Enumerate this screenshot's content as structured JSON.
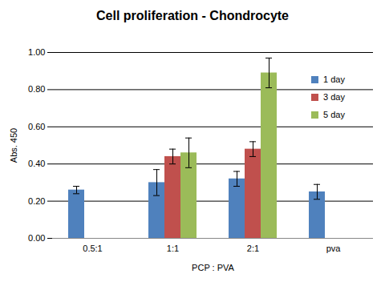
{
  "chart_data": {
    "type": "bar",
    "title": "Cell proliferation - Chondrocyte",
    "x_label": "PCP : PVA",
    "y_label": "Abs. 450",
    "categories": [
      "0.5:1",
      "1:1",
      "2:1",
      "pva"
    ],
    "series": [
      {
        "name": "1 day",
        "color": "#4f81bd",
        "values": [
          0.26,
          0.3,
          0.32,
          0.25
        ],
        "errors": [
          0.02,
          0.07,
          0.04,
          0.04
        ]
      },
      {
        "name": "3 day",
        "color": "#c0504d",
        "values": [
          null,
          0.44,
          0.48,
          null
        ],
        "errors": [
          null,
          0.04,
          0.04,
          null
        ]
      },
      {
        "name": "5 day",
        "color": "#9bbb59",
        "values": [
          null,
          0.46,
          0.89,
          null
        ],
        "errors": [
          null,
          0.08,
          0.08,
          null
        ]
      }
    ],
    "ylim": [
      0,
      1
    ],
    "yticks": [
      {
        "value": 0,
        "label": "0.00"
      },
      {
        "value": 0.2,
        "label": "0.20"
      },
      {
        "value": 0.4,
        "label": "0.40"
      },
      {
        "value": 0.6,
        "label": "0.60"
      },
      {
        "value": 0.8,
        "label": "0.80"
      },
      {
        "value": 1,
        "label": "1.00"
      }
    ],
    "grid": true,
    "legend": "right"
  }
}
